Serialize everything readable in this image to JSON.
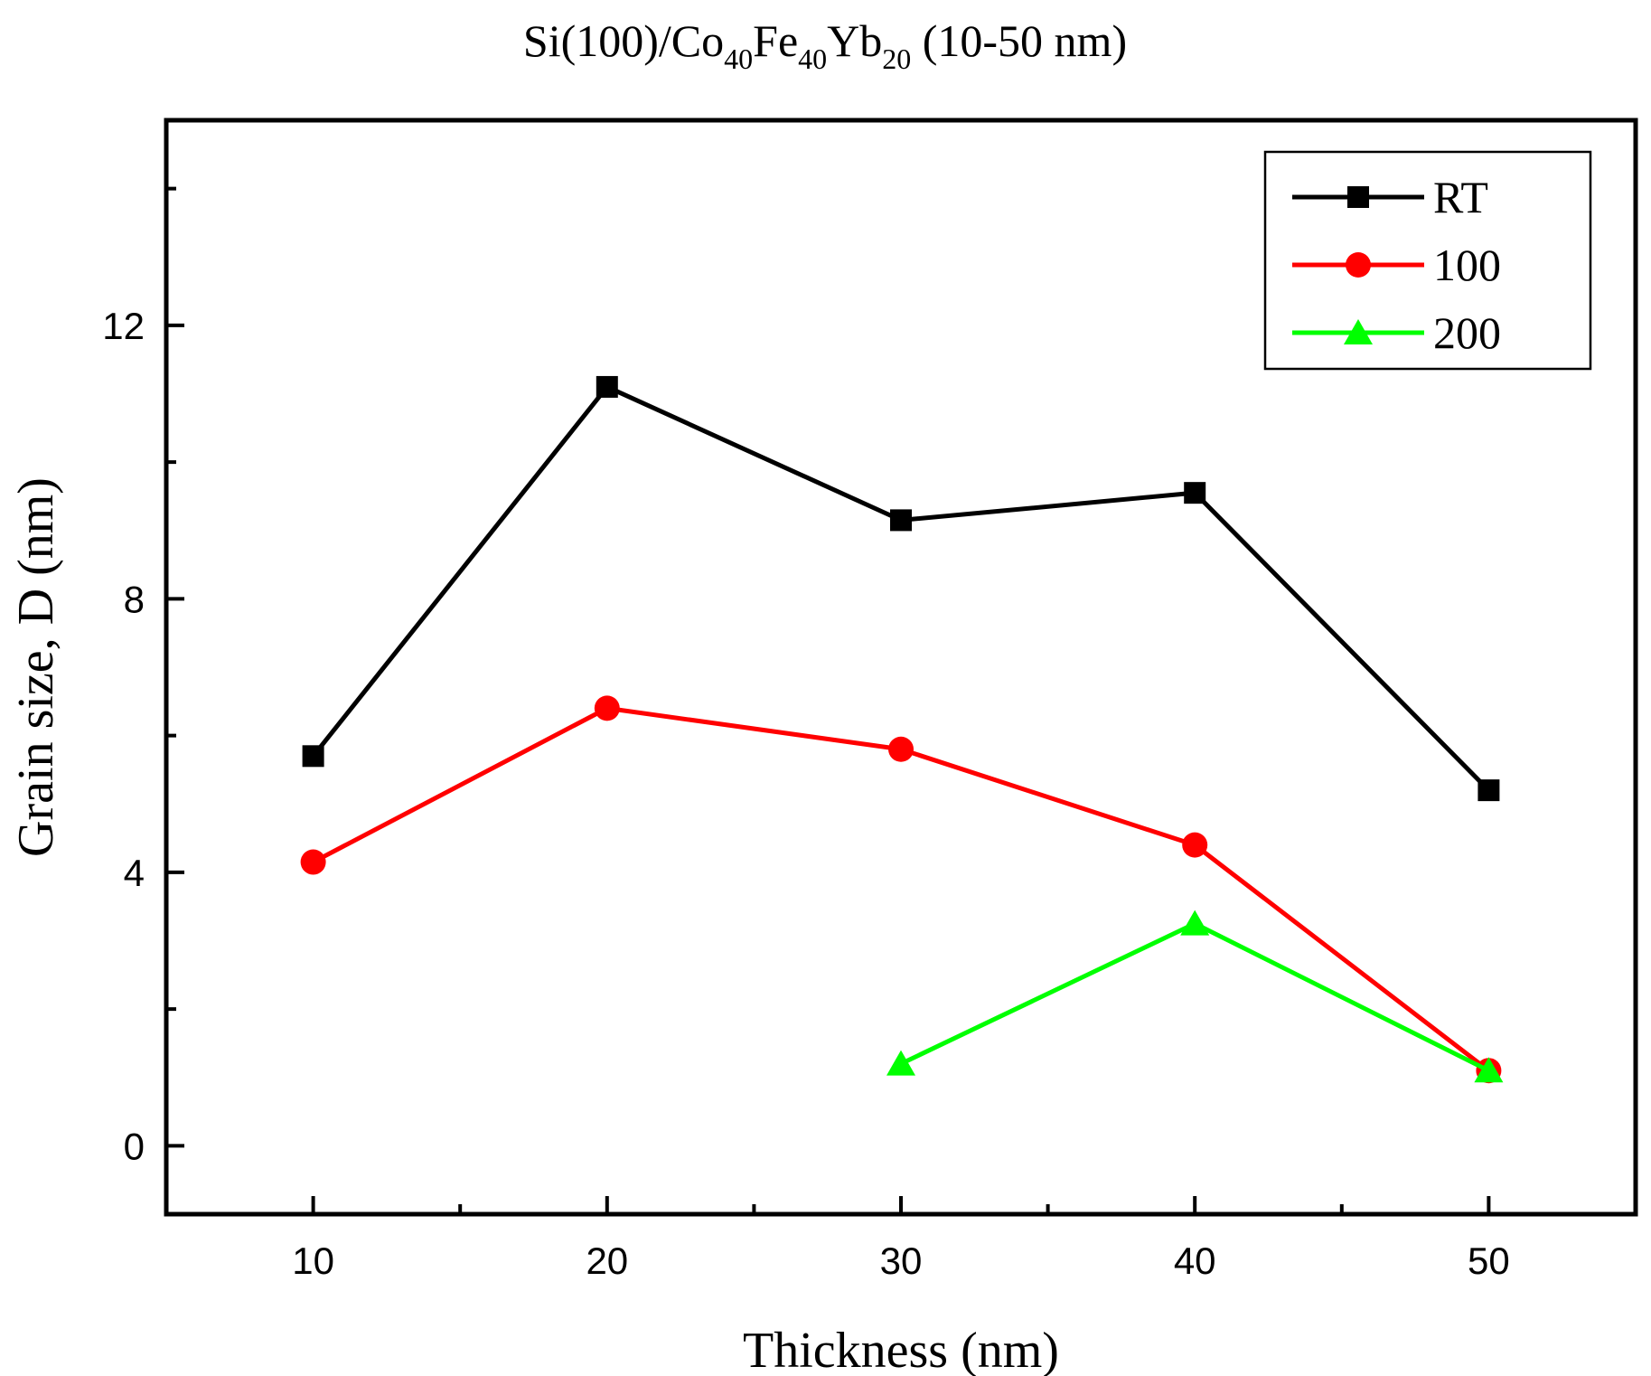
{
  "chart_data": {
    "type": "line",
    "title": {
      "prefix": "Si(100)/Co",
      "sub1": "40",
      "mid1": "Fe",
      "sub2": "40",
      "mid2": "Yb",
      "sub3": "20",
      "suffix": " (10-50 nm)"
    },
    "xlabel": "Thickness (nm)",
    "ylabel": "Grain size, D (nm)",
    "xlim": [
      5,
      55
    ],
    "ylim": [
      -1,
      15
    ],
    "xticks": [
      10,
      20,
      30,
      40,
      50
    ],
    "xtick_labels": [
      "10",
      "20",
      "30",
      "40",
      "50"
    ],
    "yticks": [
      0,
      4,
      8,
      12
    ],
    "ytick_labels": [
      "0",
      "4",
      "8",
      "12"
    ],
    "legend_position": "top-right",
    "series": [
      {
        "name": "RT",
        "color": "#000000",
        "marker": "square",
        "x": [
          10,
          20,
          30,
          40,
          50
        ],
        "y": [
          5.7,
          11.1,
          9.15,
          9.55,
          5.2
        ]
      },
      {
        "name": "100",
        "color": "#ff0000",
        "marker": "circle",
        "x": [
          10,
          20,
          30,
          40,
          50
        ],
        "y": [
          4.15,
          6.4,
          5.8,
          4.4,
          1.1
        ]
      },
      {
        "name": "200",
        "color": "#00ff00",
        "marker": "triangle",
        "x": [
          30,
          40,
          50
        ],
        "y": [
          1.2,
          3.25,
          1.1
        ]
      }
    ]
  }
}
